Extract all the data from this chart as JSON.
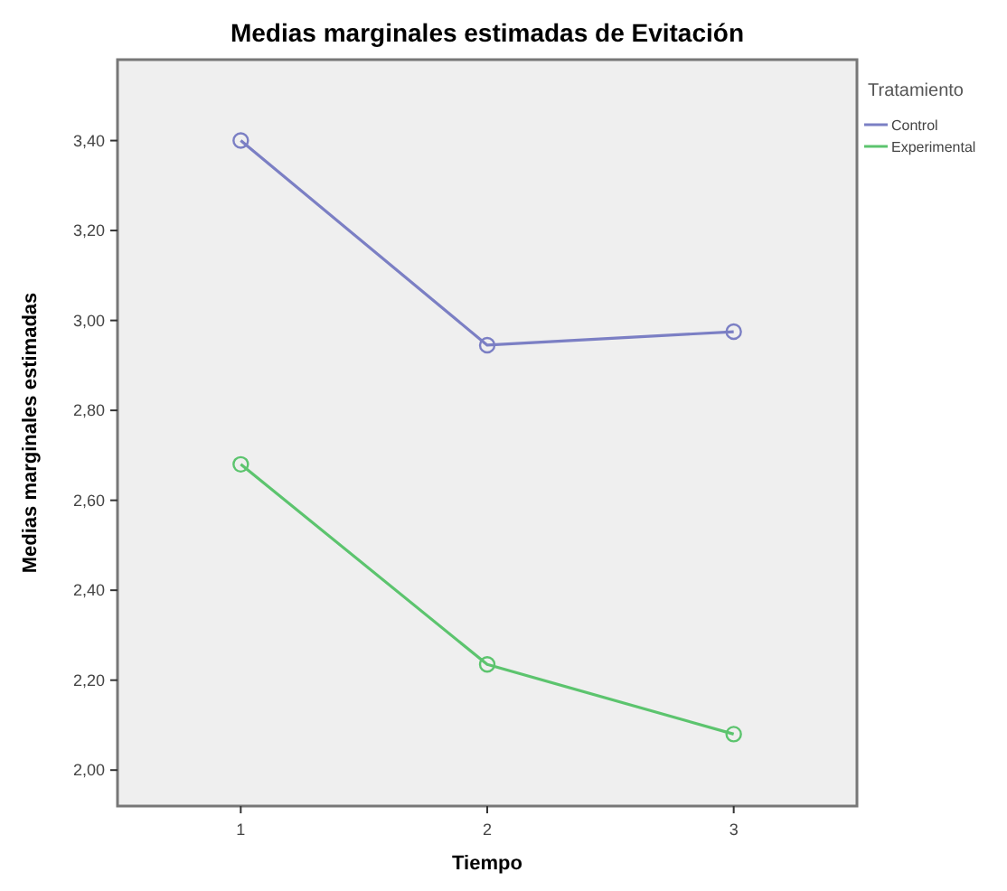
{
  "chart_data": {
    "type": "line",
    "title": "Medias marginales estimadas de Evitación",
    "xlabel": "Tiempo",
    "ylabel": "Medias marginales estimadas",
    "legend_title": "Tratamiento",
    "categories": [
      "1",
      "2",
      "3"
    ],
    "series": [
      {
        "name": "Control",
        "color": "#7b7fc4",
        "values": [
          3.4,
          2.945,
          2.975
        ]
      },
      {
        "name": "Experimental",
        "color": "#5cc46e",
        "values": [
          2.68,
          2.235,
          2.08
        ]
      }
    ],
    "ylim": [
      1.92,
      3.58
    ],
    "yticks": [
      {
        "value": 2.0,
        "label": "2,00"
      },
      {
        "value": 2.2,
        "label": "2,20"
      },
      {
        "value": 2.4,
        "label": "2,40"
      },
      {
        "value": 2.6,
        "label": "2,60"
      },
      {
        "value": 2.8,
        "label": "2,80"
      },
      {
        "value": 3.0,
        "label": "3,00"
      },
      {
        "value": 3.2,
        "label": "3,20"
      },
      {
        "value": 3.4,
        "label": "3,40"
      }
    ],
    "marker": "circle",
    "line_style": "solid",
    "grid": false,
    "legend": "top right"
  }
}
